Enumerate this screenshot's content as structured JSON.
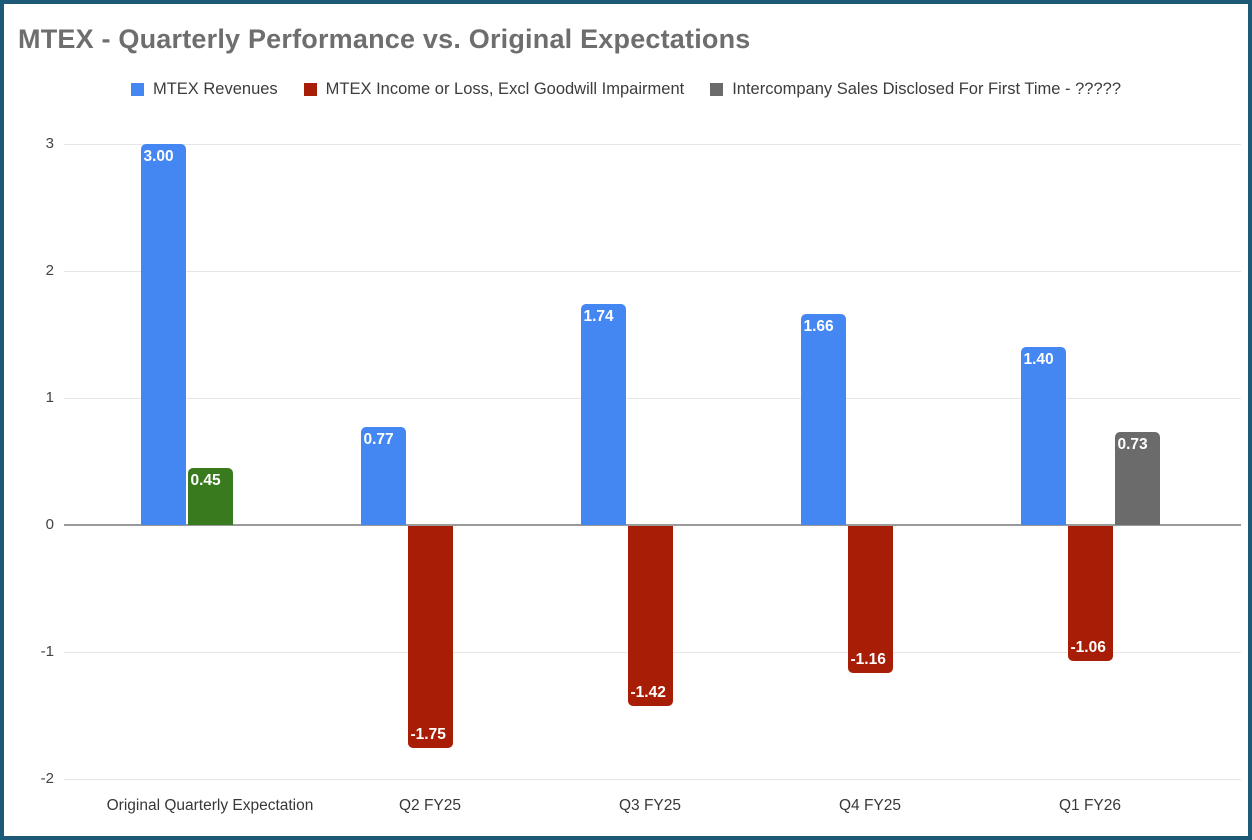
{
  "window": {
    "border_color": "#1d5a78",
    "background": "#ffffff"
  },
  "title": "MTEX - Quarterly Performance vs. Original Expectations",
  "legend": [
    {
      "label": "MTEX Revenues",
      "color": "#4486f2"
    },
    {
      "label": "MTEX Income or Loss, Excl Goodwill Impairment",
      "color": "#a81d05"
    },
    {
      "label": "Intercompany Sales Disclosed For First Time - ?????",
      "color": "#6b6b6b"
    }
  ],
  "chart_data": {
    "type": "bar",
    "title": "MTEX - Quarterly Performance vs. Original Expectations",
    "categories": [
      "Original Quarterly Expectation",
      "Q2 FY25",
      "Q3 FY25",
      "Q4 FY25",
      "Q1 FY26"
    ],
    "series": [
      {
        "name": "MTEX Revenues",
        "color": "#4486f2",
        "values": [
          3.0,
          0.77,
          1.74,
          1.66,
          1.4
        ],
        "labels": [
          "3.00",
          "0.77",
          "1.74",
          "1.66",
          "1.40"
        ]
      },
      {
        "name": "MTEX Income or Loss, Excl Goodwill Impairment",
        "color": "#a81d05",
        "values": [
          0.45,
          -1.75,
          -1.42,
          -1.16,
          -1.06
        ],
        "labels": [
          "0.45",
          "-1.75",
          "-1.42",
          "-1.16",
          "-1.06"
        ],
        "point_colors": [
          "#3a7a1e",
          null,
          null,
          null,
          null
        ]
      },
      {
        "name": "Intercompany Sales Disclosed For First Time - ?????",
        "color": "#6b6b6b",
        "values": [
          null,
          null,
          null,
          null,
          0.73
        ],
        "labels": [
          null,
          null,
          null,
          null,
          "0.73"
        ]
      }
    ],
    "y_ticks": [
      3,
      2,
      1,
      0,
      -1,
      -2
    ],
    "y_tick_labels": [
      "3",
      "2",
      "1",
      "0",
      "-1",
      "-2"
    ],
    "ylim": [
      -2,
      3
    ],
    "grid": true,
    "legend_position": "top",
    "xlabel": "",
    "ylabel": ""
  }
}
